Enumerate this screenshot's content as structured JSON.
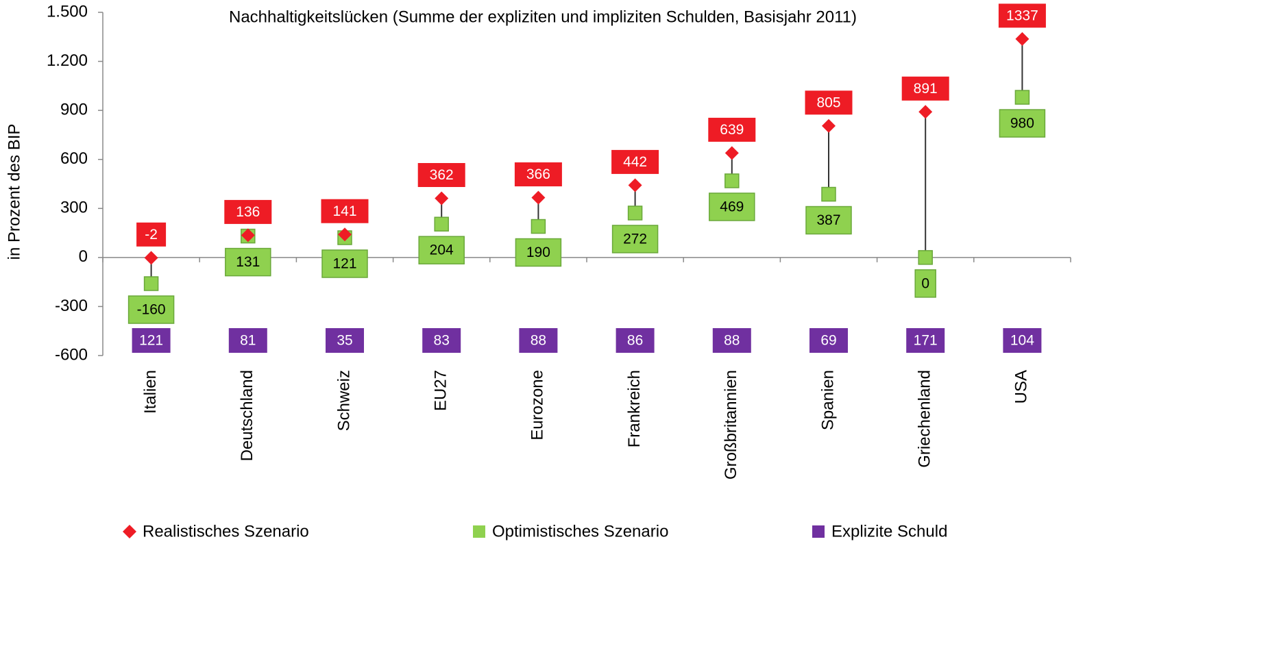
{
  "chart_data": {
    "type": "dot",
    "subtitle": "Nachhaltigkeitslücken (Summe der expliziten und impliziten Schulden, Basisjahr 2011)",
    "ylabel": "in Prozent des BIP",
    "categories": [
      "Italien",
      "Deutschland",
      "Schweiz",
      "EU27",
      "Eurozone",
      "Frankreich",
      "Großbritannien",
      "Spanien",
      "Griechenland",
      "USA"
    ],
    "series": [
      {
        "name": "Realistisches Szenario",
        "color": "#ee1c25",
        "values": [
          -2,
          136,
          141,
          362,
          366,
          442,
          639,
          805,
          891,
          1337
        ]
      },
      {
        "name": "Optimistisches Szenario",
        "color": "#8fd14f",
        "values": [
          -160,
          131,
          121,
          204,
          190,
          272,
          469,
          387,
          0,
          980
        ]
      },
      {
        "name": "Explizite Schuld",
        "color": "#7030a0",
        "values": [
          121,
          81,
          35,
          83,
          88,
          86,
          88,
          69,
          171,
          104
        ]
      }
    ],
    "ylim": [
      -600,
      1500
    ],
    "yticks": [
      -600,
      -300,
      0,
      300,
      600,
      900,
      {
        "value": 1200,
        "label": "1.200"
      },
      {
        "value": 1500,
        "label": "1.500"
      }
    ]
  }
}
